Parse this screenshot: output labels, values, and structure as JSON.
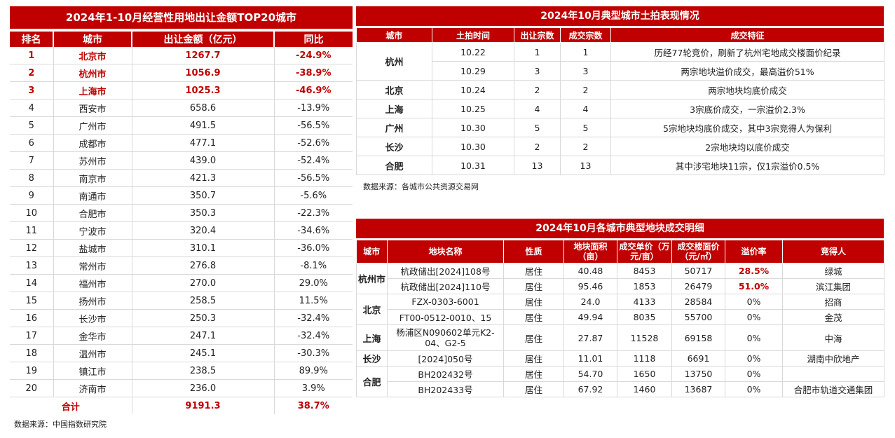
{
  "left": {
    "title": "2024年1-10月经营性用地出让金额TOP20城市",
    "headers": [
      "排名",
      "城市",
      "出让金额（亿元）",
      "同比"
    ],
    "rows": [
      [
        "1",
        "北京市",
        "1267.7",
        "-24.9%"
      ],
      [
        "2",
        "杭州市",
        "1056.9",
        "-38.9%"
      ],
      [
        "3",
        "上海市",
        "1025.3",
        "-46.9%"
      ],
      [
        "4",
        "西安市",
        "658.6",
        "-13.9%"
      ],
      [
        "5",
        "广州市",
        "491.5",
        "-56.5%"
      ],
      [
        "6",
        "成都市",
        "477.1",
        "-52.6%"
      ],
      [
        "7",
        "苏州市",
        "439.0",
        "-52.4%"
      ],
      [
        "8",
        "南京市",
        "421.3",
        "-56.5%"
      ],
      [
        "9",
        "南通市",
        "350.7",
        "-5.6%"
      ],
      [
        "10",
        "合肥市",
        "350.3",
        "-22.3%"
      ],
      [
        "11",
        "宁波市",
        "320.4",
        "-34.6%"
      ],
      [
        "12",
        "盐城市",
        "310.1",
        "-36.0%"
      ],
      [
        "13",
        "常州市",
        "276.8",
        "-8.1%"
      ],
      [
        "14",
        "福州市",
        "270.0",
        "29.0%"
      ],
      [
        "15",
        "扬州市",
        "258.5",
        "11.5%"
      ],
      [
        "16",
        "长沙市",
        "250.3",
        "-32.4%"
      ],
      [
        "17",
        "金华市",
        "247.1",
        "-32.4%"
      ],
      [
        "18",
        "温州市",
        "245.1",
        "-30.3%"
      ],
      [
        "19",
        "镇江市",
        "238.5",
        "89.9%"
      ],
      [
        "20",
        "济南市",
        "236.0",
        "3.9%"
      ]
    ],
    "total": {
      "label": "合计",
      "amount": "9191.3",
      "yoy": "38.7%"
    },
    "source": "数据来源：中国指数研究院"
  },
  "right_top": {
    "title": "2024年10月典型城市土拍表现情况",
    "headers": [
      "城市",
      "土拍时间",
      "出让宗数",
      "成交宗数",
      "成交特征"
    ],
    "groups": [
      {
        "city": "杭州",
        "rows": [
          [
            "10.22",
            "1",
            "1",
            "历经77轮竞价，刷新了杭州宅地成交楼面价纪录"
          ],
          [
            "10.29",
            "3",
            "3",
            "两宗地块溢价成交，最高溢价51%"
          ]
        ]
      },
      {
        "city": "北京",
        "rows": [
          [
            "10.24",
            "2",
            "2",
            "两宗地块均底价成交"
          ]
        ]
      },
      {
        "city": "上海",
        "rows": [
          [
            "10.25",
            "4",
            "4",
            "3宗底价成交，一宗溢价2.3%"
          ]
        ]
      },
      {
        "city": "广州",
        "rows": [
          [
            "10.30",
            "5",
            "5",
            "5宗地块均底价成交，其中3宗竞得人为保利"
          ]
        ]
      },
      {
        "city": "长沙",
        "rows": [
          [
            "10.30",
            "2",
            "2",
            "2宗地块均以底价成交"
          ]
        ]
      },
      {
        "city": "合肥",
        "rows": [
          [
            "10.31",
            "13",
            "13",
            "其中涉宅地块11宗，仅1宗溢价0.5%"
          ]
        ]
      }
    ],
    "source": "数据来源：各城市公共资源交易网"
  },
  "right_bottom": {
    "title": "2024年10月各城市典型地块成交明细",
    "headers": [
      "城市",
      "地块名称",
      "性质",
      "地块面积（亩）",
      "成交单价（万元/亩）",
      "成交楼面价（元/㎡）",
      "溢价率",
      "竞得人"
    ],
    "groups": [
      {
        "city": "杭州市",
        "rows": [
          [
            "杭政储出[2024]108号",
            "居住",
            "40.48",
            "8453",
            "50717",
            "28.5%",
            "绿城"
          ],
          [
            "杭政储出[2024]110号",
            "居住",
            "95.46",
            "1853",
            "26479",
            "51.0%",
            "滨江集团"
          ]
        ]
      },
      {
        "city": "北京",
        "rows": [
          [
            "FZX-0303-6001",
            "居住",
            "24.0",
            "4133",
            "28584",
            "0%",
            "招商"
          ],
          [
            "FT00-0512-0010、15",
            "居住",
            "49.94",
            "8035",
            "55700",
            "0%",
            "金茂"
          ]
        ]
      },
      {
        "city": "上海",
        "rows": [
          [
            "杨浦区N090602单元K2-04、G2-5",
            "居住",
            "27.87",
            "11528",
            "69158",
            "0%",
            "中海"
          ]
        ]
      },
      {
        "city": "长沙",
        "rows": [
          [
            "[2024]050号",
            "居住",
            "11.01",
            "1118",
            "6691",
            "0%",
            "湖南中欣地产"
          ]
        ]
      },
      {
        "city": "合肥",
        "rows": [
          [
            "BH202432号",
            "居住",
            "54.70",
            "1650",
            "13750",
            "0%",
            ""
          ],
          [
            "BH202433号",
            "居住",
            "67.92",
            "1460",
            "13687",
            "0%",
            "合肥市轨道交通集团"
          ]
        ]
      }
    ]
  }
}
